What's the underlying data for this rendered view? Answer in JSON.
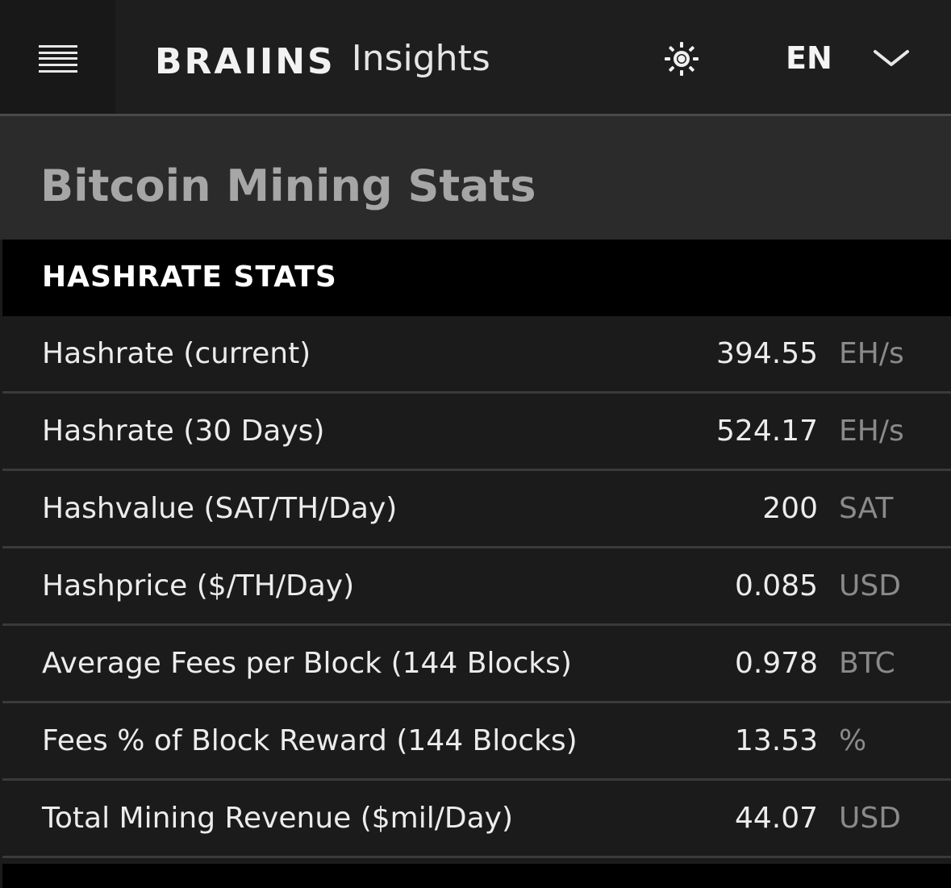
{
  "header": {
    "logo_mark": "BRAIINS",
    "logo_sub": "Insights",
    "theme_icon": "sun-icon",
    "language": "EN",
    "language_icon": "chevron-down-icon",
    "menu_icon": "hamburger-menu-icon"
  },
  "page": {
    "title": "Bitcoin Mining Stats"
  },
  "section": {
    "title": "HASHRATE STATS",
    "rows": [
      {
        "label": "Hashrate (current)",
        "value": "394.55",
        "unit": "EH/s"
      },
      {
        "label": "Hashrate (30 Days)",
        "value": "524.17",
        "unit": "EH/s"
      },
      {
        "label": "Hashvalue (SAT/TH/Day)",
        "value": "200",
        "unit": "SAT"
      },
      {
        "label": "Hashprice ($/TH/Day)",
        "value": "0.085",
        "unit": "USD"
      },
      {
        "label": "Average Fees per Block (144 Blocks)",
        "value": "0.978",
        "unit": "BTC"
      },
      {
        "label": "Fees % of Block Reward (144 Blocks)",
        "value": "13.53",
        "unit": "%"
      },
      {
        "label": "Total Mining Revenue ($mil/Day)",
        "value": "44.07",
        "unit": "USD"
      }
    ]
  },
  "colors": {
    "background": "#1b1b1b",
    "header": "#1e1e1e",
    "title_band": "#2b2b2b",
    "section_header": "#000000",
    "row_divider": "#3a3a3a",
    "text_primary": "#ececec",
    "text_muted": "#8a8a8a",
    "title_text": "#a6a6a6"
  }
}
